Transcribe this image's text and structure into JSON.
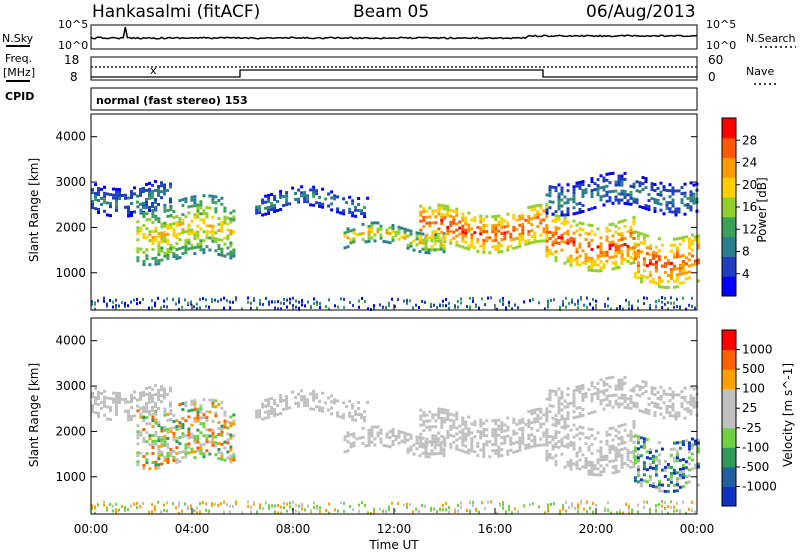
{
  "header": {
    "station": "Hankasalmi (fitACF)",
    "beam": "Beam 05",
    "date": "06/Aug/2013"
  },
  "top_panels": {
    "nsky_label": "N.Sky",
    "nsearch_label": "N.Search",
    "noise_ticks": [
      "10^5",
      "10^0"
    ],
    "freq_label_line1": "Freq.",
    "freq_label_line2": "[MHz]",
    "freq_ticks": [
      "18",
      "8"
    ],
    "nave_label": "Nave",
    "nave_ticks": [
      "60",
      "0"
    ],
    "cpid_label": "CPID",
    "cpid_text": "normal (fast stereo) 153"
  },
  "x_axis": {
    "label": "Time UT",
    "ticks": [
      "00:00",
      "04:00",
      "08:00",
      "12:00",
      "16:00",
      "20:00",
      "00:00"
    ]
  },
  "chart_data": [
    {
      "type": "heatmap",
      "variable": "Power",
      "ylabel": "Slant Range [km]",
      "xlabel": "Time UT",
      "x_range_hours": [
        0,
        24
      ],
      "ylim": [
        180,
        4500
      ],
      "y_ticks": [
        1000,
        2000,
        3000,
        4000
      ],
      "colorbar": {
        "label": "Power [dB]",
        "ticks": [
          "28",
          "24",
          "20",
          "16",
          "12",
          "8",
          "4"
        ],
        "colors": [
          "#0000ff",
          "#1f3fbf",
          "#2a7f8f",
          "#3aa05a",
          "#8fd02a",
          "#ffd000",
          "#ff9a00",
          "#ff5a00",
          "#ff0000"
        ]
      },
      "echo_bands": [
        {
          "t_start": 0.0,
          "t_end": 3.2,
          "range_start": 2400,
          "range_end": 3000,
          "level": "low"
        },
        {
          "t_start": 1.8,
          "t_end": 5.7,
          "range_start": 1300,
          "range_end": 2600,
          "level": "medium"
        },
        {
          "t_start": 6.5,
          "t_end": 11.0,
          "range_start": 2400,
          "range_end": 2800,
          "level": "low"
        },
        {
          "t_start": 10.0,
          "t_end": 14.0,
          "range_start": 1600,
          "range_end": 2000,
          "level": "medium"
        },
        {
          "t_start": 13.0,
          "t_end": 18.0,
          "range_start": 1600,
          "range_end": 2400,
          "level": "high"
        },
        {
          "t_start": 18.0,
          "t_end": 21.5,
          "range_start": 1200,
          "range_end": 2200,
          "level": "high"
        },
        {
          "t_start": 21.5,
          "t_end": 24.0,
          "range_start": 800,
          "range_end": 1900,
          "level": "high"
        },
        {
          "t_start": 18.0,
          "t_end": 24.0,
          "range_start": 2400,
          "range_end": 3100,
          "level": "low"
        }
      ]
    },
    {
      "type": "heatmap",
      "variable": "Velocity",
      "ylabel": "Slant Range [km]",
      "xlabel": "Time UT",
      "x_range_hours": [
        0,
        24
      ],
      "ylim": [
        180,
        4500
      ],
      "y_ticks": [
        1000,
        2000,
        3000,
        4000
      ],
      "colorbar": {
        "label": "Velocity [m s^-1]",
        "ticks": [
          "1000",
          "500",
          "100",
          "25",
          "-25",
          "-100",
          "-500",
          "-1000"
        ],
        "colors": [
          "#ff0000",
          "#ff6000",
          "#ffa000",
          "#c0c0c0",
          "#c0c0c0",
          "#6fd040",
          "#2f9a5a",
          "#2060a0",
          "#1030c0"
        ]
      }
    }
  ]
}
